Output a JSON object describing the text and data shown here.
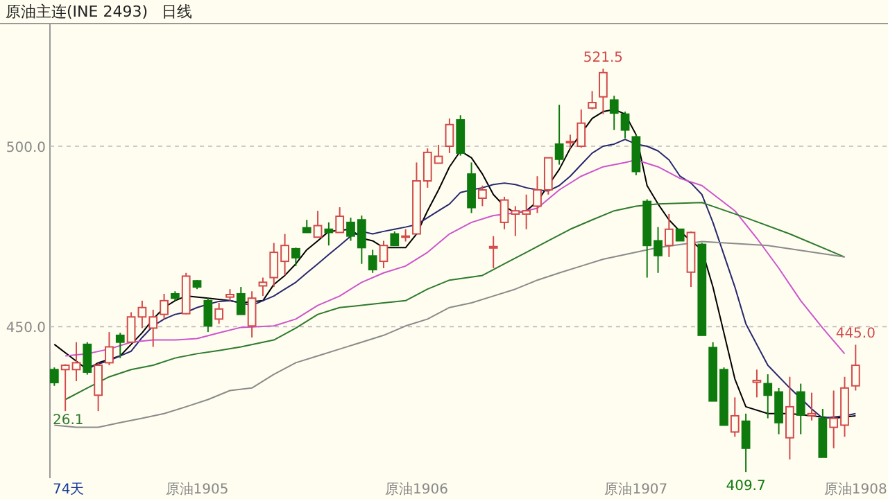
{
  "chart_data": {
    "type": "candlestick",
    "title": "原油主连(INE 2493)",
    "subtitle": "日线",
    "annotations": [
      {
        "text": "521.5",
        "y": 521.5
      },
      {
        "text": "409.7",
        "y": 409.7
      },
      {
        "text": "445.0",
        "y": 445.0
      },
      "74天",
      "26.1"
    ],
    "categories": [
      null,
      null,
      null,
      null,
      null,
      null,
      null,
      null,
      null,
      null,
      null,
      null,
      null,
      "原油1905",
      null,
      null,
      null,
      null,
      null,
      null,
      null,
      null,
      null,
      null,
      null,
      null,
      null,
      null,
      null,
      null,
      null,
      null,
      null,
      "原油1906",
      null,
      null,
      null,
      null,
      null,
      null,
      null,
      null,
      null,
      null,
      null,
      null,
      null,
      null,
      null,
      null,
      null,
      null,
      null,
      "原油1907",
      null,
      null,
      null,
      null,
      null,
      null,
      null,
      null,
      null,
      null,
      null,
      null,
      null,
      null,
      null,
      null,
      null,
      null,
      null,
      "原油1908"
    ],
    "ylim": [
      408,
      534
    ],
    "yticks": [
      {
        "value": 450,
        "label": "450.0"
      },
      {
        "value": 500,
        "label": "500.0"
      }
    ],
    "grid": "y",
    "colors": [
      "#0e7a0e",
      "#d24a4a",
      "#d24a4a",
      "#0e7a0e",
      "#d24a4a",
      "#d24a4a",
      "#0e7a0e",
      "#d24a4a",
      "#d24a4a",
      "#d24a4a",
      "#d24a4a",
      "#0e7a0e",
      "#d24a4a",
      "#0e7a0e",
      "#0e7a0e",
      "#d24a4a",
      "#d24a4a",
      "#0e7a0e",
      "#d24a4a",
      "#d24a4a",
      "#d24a4a",
      "#d24a4a",
      "#0e7a0e",
      "#0e7a0e",
      "#d24a4a",
      "#0e7a0e",
      "#d24a4a",
      "#0e7a0e",
      "#0e7a0e",
      "#0e7a0e",
      "#d24a4a",
      "#0e7a0e",
      "#d24a4a",
      "#d24a4a",
      "#d24a4a",
      "#d24a4a",
      "#d24a4a",
      "#0e7a0e",
      "#0e7a0e",
      "#d24a4a",
      "#d24a4a",
      "#d24a4a",
      "#d24a4a",
      "#d24a4a",
      "#d24a4a",
      "#d24a4a",
      "#0e7a0e",
      "#d24a4a",
      "#d24a4a",
      "#d24a4a",
      "#d24a4a",
      "#0e7a0e",
      "#0e7a0e",
      "#0e7a0e",
      "#0e7a0e",
      "#0e7a0e",
      "#d24a4a",
      "#0e7a0e",
      "#d24a4a",
      "#0e7a0e",
      "#0e7a0e",
      "#0e7a0e",
      "#d24a4a",
      "#0e7a0e",
      "#d24a4a",
      "#0e7a0e",
      "#0e7a0e",
      "#d24a4a",
      "#0e7a0e",
      "#d24a4a",
      "#0e7a0e",
      "#d24a4a",
      "#d24a4a",
      "#d24a4a"
    ],
    "ohlc": [
      [
        438.1,
        438.7,
        433.6,
        434.5
      ],
      [
        438.1,
        439.6,
        426.6,
        439.3
      ],
      [
        438.1,
        445.7,
        434.9,
        440.0
      ],
      [
        445.1,
        445.7,
        436.7,
        437.4
      ],
      [
        431.0,
        440.0,
        426.6,
        439.3
      ],
      [
        440.0,
        448.5,
        439.3,
        444.4
      ],
      [
        447.6,
        448.3,
        441.3,
        445.7
      ],
      [
        445.7,
        454.0,
        445.7,
        452.7
      ],
      [
        452.7,
        457.2,
        449.6,
        455.3
      ],
      [
        449.6,
        454.7,
        444.4,
        452.7
      ],
      [
        453.4,
        459.1,
        452.1,
        457.2
      ],
      [
        459.1,
        459.8,
        457.2,
        457.9
      ],
      [
        453.6,
        464.9,
        453.4,
        464.0
      ],
      [
        462.7,
        462.9,
        460.4,
        461.0
      ],
      [
        457.2,
        457.9,
        448.5,
        450.2
      ],
      [
        452.1,
        456.6,
        450.8,
        454.9
      ],
      [
        458.2,
        460.4,
        457.2,
        458.9
      ],
      [
        459.1,
        461.0,
        453.4,
        453.4
      ],
      [
        450.2,
        459.8,
        447.0,
        457.9
      ],
      [
        461.3,
        463.6,
        458.5,
        462.3
      ],
      [
        463.6,
        473.2,
        461.0,
        470.6
      ],
      [
        468.1,
        475.7,
        464.2,
        472.5
      ],
      [
        471.6,
        471.9,
        466.8,
        469.1
      ],
      [
        477.4,
        479.6,
        476.1,
        476.1
      ],
      [
        474.8,
        482.1,
        474.8,
        478.0
      ],
      [
        477.0,
        478.9,
        472.5,
        476.1
      ],
      [
        476.1,
        483.1,
        476.1,
        480.6
      ],
      [
        478.9,
        480.2,
        473.8,
        475.1
      ],
      [
        479.6,
        480.8,
        467.4,
        471.9
      ],
      [
        469.6,
        471.3,
        464.9,
        465.8
      ],
      [
        468.1,
        473.8,
        466.2,
        472.5
      ],
      [
        475.7,
        476.4,
        472.5,
        472.5
      ],
      [
        474.8,
        477.0,
        473.6,
        475.1
      ],
      [
        475.7,
        495.5,
        475.7,
        490.4
      ],
      [
        490.4,
        499.4,
        488.5,
        498.3
      ],
      [
        495.3,
        500.4,
        495.3,
        497.2
      ],
      [
        500.0,
        507.7,
        498.1,
        506.0
      ],
      [
        507.3,
        508.6,
        497.4,
        498.1
      ],
      [
        492.3,
        495.5,
        481.5,
        483.0
      ],
      [
        485.6,
        489.1,
        483.4,
        487.9
      ],
      [
        471.8,
        475.1,
        466.2,
        472.2
      ],
      [
        478.9,
        486.0,
        477.0,
        485.1
      ],
      [
        481.2,
        483.4,
        475.1,
        482.1
      ],
      [
        481.2,
        486.6,
        477.0,
        482.1
      ],
      [
        483.4,
        491.7,
        481.5,
        487.9
      ],
      [
        487.9,
        496.8,
        486.6,
        496.8
      ],
      [
        500.6,
        511.5,
        494.9,
        496.4
      ],
      [
        501.0,
        503.2,
        499.4,
        501.3
      ],
      [
        500.0,
        510.2,
        499.6,
        506.4
      ],
      [
        510.6,
        515.3,
        510.2,
        512.1
      ],
      [
        513.7,
        521.5,
        508.9,
        520.4
      ],
      [
        512.8,
        514.0,
        504.5,
        509.2
      ],
      [
        508.9,
        509.6,
        502.2,
        504.5
      ],
      [
        502.6,
        503.2,
        492.0,
        493.0
      ],
      [
        484.7,
        485.3,
        463.6,
        472.5
      ],
      [
        473.8,
        477.6,
        464.9,
        469.7
      ],
      [
        472.5,
        481.2,
        469.3,
        477.0
      ],
      [
        477.0,
        477.0,
        473.8,
        473.8
      ],
      [
        465.1,
        476.4,
        461.0,
        476.1
      ],
      [
        472.8,
        473.2,
        447.6,
        447.6
      ],
      [
        444.2,
        445.7,
        429.4,
        429.4
      ],
      [
        438.1,
        438.7,
        422.7,
        422.7
      ],
      [
        420.8,
        430.4,
        419.5,
        425.3
      ],
      [
        423.8,
        425.9,
        409.7,
        416.3
      ],
      [
        434.6,
        438.1,
        430.4,
        435.1
      ],
      [
        434.2,
        436.8,
        424.6,
        431.0
      ],
      [
        431.9,
        433.0,
        420.2,
        423.4
      ],
      [
        419.2,
        436.1,
        413.2,
        427.8
      ],
      [
        431.9,
        434.2,
        420.2,
        425.5
      ],
      [
        425.3,
        431.7,
        424.0,
        425.9
      ],
      [
        424.6,
        427.2,
        413.8,
        413.8
      ],
      [
        422.1,
        432.3,
        416.3,
        424.6
      ],
      [
        422.7,
        436.1,
        419.5,
        433.0
      ],
      [
        433.6,
        445.0,
        432.3,
        439.3
      ]
    ],
    "series": [
      {
        "type": "line",
        "color": "#000000",
        "values": [
          445.1,
          null,
          null,
          438.1,
          440.0,
          null,
          441.9,
          445.1,
          448.3,
          452.1,
          455.3,
          457.2,
          458.5,
          null,
          457.9,
          null,
          457.2,
          456.6,
          null,
          457.2,
          461.7,
          464.2,
          467.4,
          471.3,
          473.8,
          476.4,
          null,
          477.0,
          474.5,
          473.8,
          471.9,
          null,
          471.9,
          475.7,
          482.1,
          487.9,
          494.3,
          498.7,
          496.8,
          492.3,
          486.6,
          483.4,
          481.5,
          482.1,
          484.7,
          null,
          493.6,
          499.4,
          null,
          507.7,
          509.6,
          510.2,
          508.9,
          503.2,
          489.1,
          484.0,
          479.6,
          476.4,
          473.8,
          471.3,
          461.0,
          448.3,
          435.5,
          427.8,
          null,
          425.9,
          null,
          425.9,
          null,
          425.3,
          null,
          424.6,
          null,
          425.3
        ]
      },
      {
        "type": "line",
        "color": "#27276e",
        "values": [
          null,
          null,
          null,
          438.7,
          null,
          440.6,
          null,
          443.2,
          447.0,
          450.2,
          452.1,
          453.4,
          454.0,
          455.3,
          456.2,
          457.0,
          457.2,
          null,
          455.9,
          457.2,
          458.5,
          460.4,
          462.3,
          464.9,
          467.4,
          470.0,
          472.5,
          475.1,
          476.4,
          475.7,
          476.4,
          477.0,
          477.6,
          478.3,
          480.2,
          482.1,
          484.0,
          487.2,
          487.9,
          488.5,
          489.4,
          489.8,
          489.4,
          488.5,
          487.9,
          487.6,
          489.1,
          491.7,
          494.9,
          498.1,
          500.0,
          500.6,
          501.9,
          500.6,
          500.0,
          498.7,
          496.2,
          491.7,
          489.8,
          486.6,
          478.9,
          null,
          461.0,
          450.8,
          null,
          439.3,
          null,
          433.0,
          null,
          427.2,
          424.6,
          null,
          425.3,
          425.9
        ]
      },
      {
        "type": "line",
        "color": "#cc55cc",
        "values": [
          null,
          441.9,
          null,
          442.5,
          null,
          443.8,
          null,
          445.7,
          null,
          446.3,
          null,
          446.3,
          null,
          446.7,
          null,
          448.3,
          null,
          449.8,
          null,
          null,
          450.2,
          null,
          452.1,
          null,
          455.9,
          null,
          458.5,
          null,
          462.3,
          null,
          464.9,
          null,
          466.8,
          null,
          470.6,
          null,
          475.7,
          null,
          478.9,
          null,
          480.8,
          null,
          481.5,
          null,
          482.8,
          null,
          487.9,
          null,
          491.7,
          null,
          494.3,
          null,
          495.5,
          496.2,
          null,
          494.3,
          null,
          491.1,
          null,
          489.1,
          null,
          null,
          482.1,
          null,
          474.5,
          null,
          466.2,
          null,
          457.2,
          null,
          449.6,
          null,
          442.5,
          null
        ]
      },
      {
        "type": "line",
        "color": "#2d7a2d",
        "values": [
          null,
          429.8,
          null,
          433.0,
          null,
          436.1,
          null,
          438.1,
          null,
          439.3,
          null,
          441.3,
          null,
          442.5,
          null,
          443.4,
          null,
          444.4,
          null,
          null,
          446.3,
          null,
          449.6,
          null,
          453.4,
          null,
          455.3,
          null,
          455.9,
          null,
          456.6,
          null,
          457.2,
          null,
          460.4,
          null,
          462.9,
          null,
          null,
          464.2,
          null,
          467.4,
          null,
          470.6,
          null,
          473.8,
          null,
          477.0,
          null,
          479.6,
          null,
          482.1,
          null,
          483.4,
          null,
          484.0,
          null,
          null,
          null,
          484.4,
          null,
          null,
          null,
          480.2,
          null,
          null,
          null,
          475.7,
          null,
          null,
          null,
          null,
          469.3,
          null
        ]
      },
      {
        "type": "line",
        "color": "#8a8a8a",
        "values": [
          422.7,
          null,
          422.1,
          null,
          422.1,
          null,
          423.4,
          null,
          424.6,
          null,
          425.9,
          null,
          427.8,
          null,
          429.8,
          null,
          432.3,
          null,
          433.0,
          null,
          436.8,
          null,
          440.0,
          null,
          441.9,
          null,
          443.8,
          null,
          445.7,
          null,
          447.6,
          null,
          450.2,
          null,
          452.1,
          null,
          455.3,
          null,
          456.6,
          null,
          458.5,
          null,
          460.4,
          null,
          462.9,
          null,
          464.9,
          null,
          466.8,
          null,
          468.7,
          null,
          470.0,
          null,
          471.3,
          471.9,
          null,
          null,
          null,
          473.6,
          null,
          null,
          null,
          null,
          null,
          472.5,
          null,
          null,
          null,
          null,
          null,
          null,
          469.3,
          null
        ]
      }
    ]
  }
}
